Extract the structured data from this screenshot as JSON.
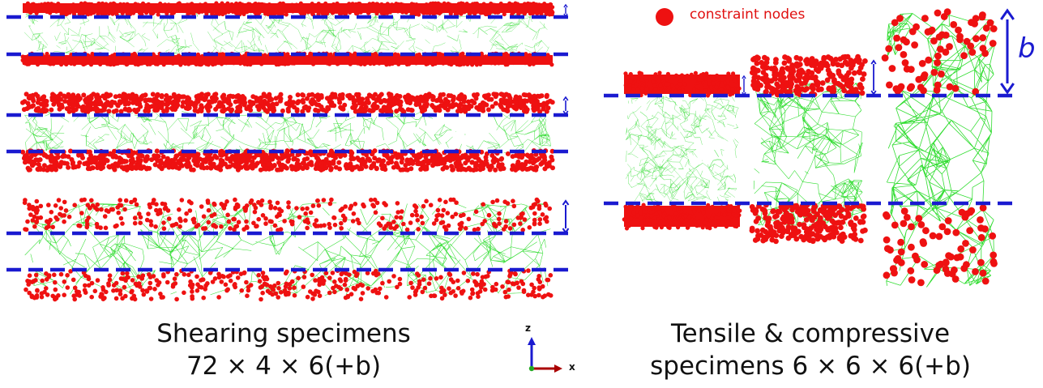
{
  "legend": {
    "label": "constraint nodes",
    "marker_color": "#ee1111"
  },
  "dimension_label": "b",
  "captions": {
    "shearing_line1": "Shearing specimens",
    "shearing_line2": "72 × 4 × 6(+b)",
    "tensile_line1": "Tensile & compressive",
    "tensile_line2": "specimens 6 × 6 × 6(+b)"
  },
  "axes": {
    "z_label": "z",
    "x_label": "x"
  },
  "colors": {
    "network": "#33dd33",
    "constraint": "#ee1111",
    "boundary": "#1a1ad0",
    "axis_z": "#1a1ad0",
    "axis_x": "#aa0000",
    "axis_y": "#22aa22"
  }
}
